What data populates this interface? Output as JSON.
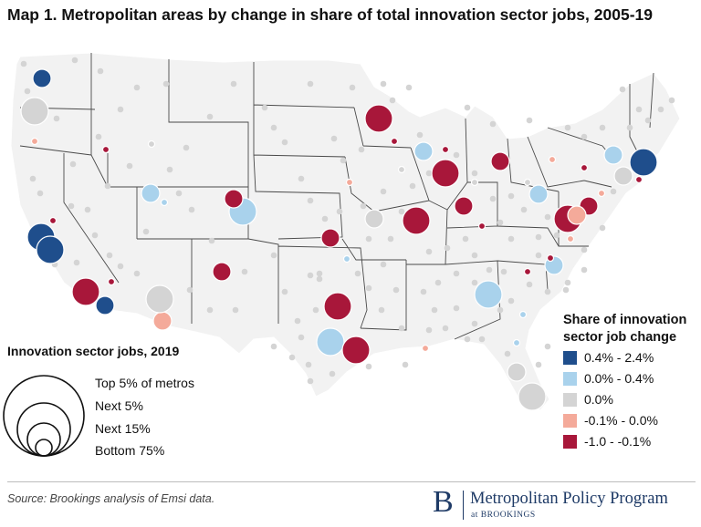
{
  "title": "Map 1. Metropolitan areas by change in share of total innovation sector jobs, 2005-19",
  "size_legend": {
    "title": "Innovation sector jobs, 2019",
    "labels": [
      "Top 5% of metros",
      "Next 5%",
      "Next 15%",
      "Bottom 75%"
    ]
  },
  "color_legend": {
    "title_line1": "Share of innovation",
    "title_line2": "sector job change",
    "items": [
      {
        "label": "0.4% - 2.4%",
        "color": "#1f4e8c"
      },
      {
        "label": "0.0% - 0.4%",
        "color": "#a9d2ec"
      },
      {
        "label": "0.0%",
        "color": "#d4d4d4"
      },
      {
        "label": "-0.1% - 0.0%",
        "color": "#f4aa9a"
      },
      {
        "label": "-1.0 - -0.1%",
        "color": "#a8173a"
      }
    ]
  },
  "source": "Source: Brookings analysis of Emsi data.",
  "logo": {
    "letter": "B",
    "name": "Metropolitan Policy Program",
    "sub": "at BROOKINGS"
  },
  "map_data": {
    "size_classes": [
      "top5",
      "next5",
      "next15",
      "bottom75"
    ],
    "color_classes": [
      "0.4% - 2.4%",
      "0.0% - 0.4%",
      "0.0%",
      "-0.1% - 0.0%",
      "-1.0 - -0.1%"
    ],
    "metros_by_color_and_size": {
      "0.4% - 2.4%": {
        "top5": 5,
        "next5": 0,
        "next15": 0
      },
      "0.0% - 0.4%": {
        "top5": 2,
        "next5": 6,
        "next15": 5
      },
      "-1.0 - -0.1%": {
        "top5": 6,
        "next5": 7,
        "next15": 9
      }
    }
  }
}
